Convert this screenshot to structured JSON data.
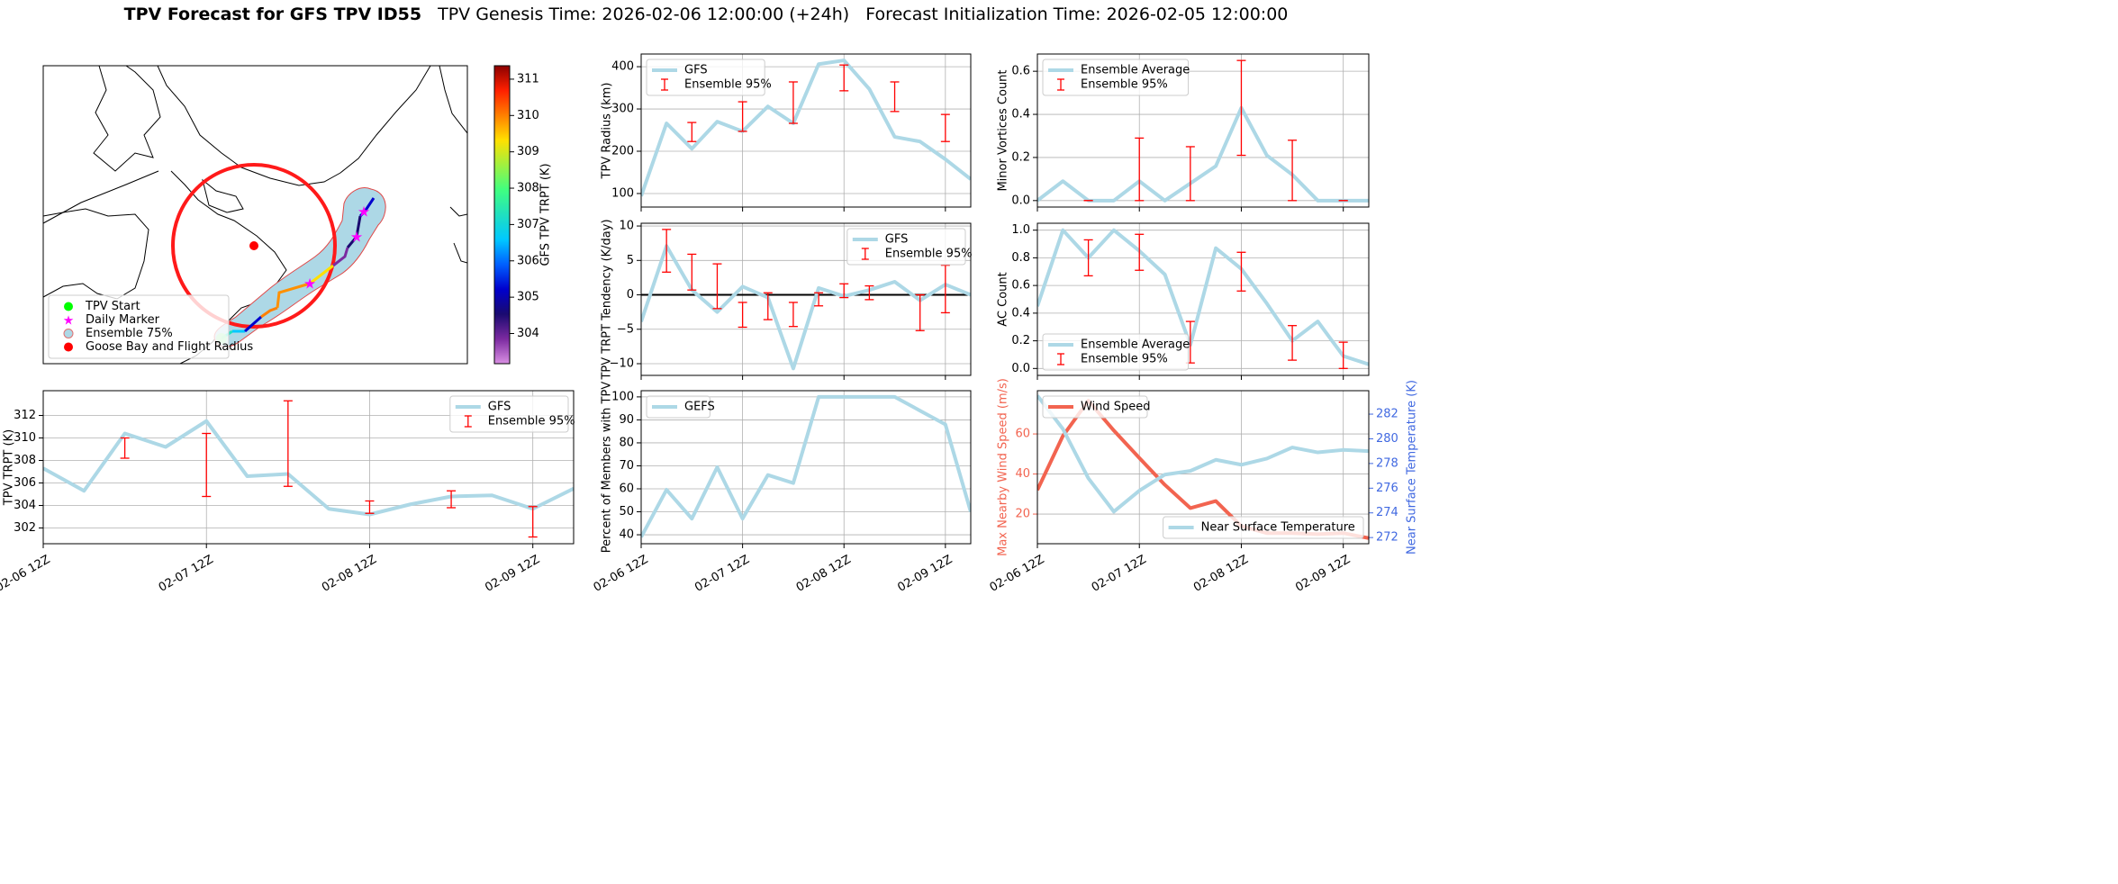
{
  "suptitle": "TPV Forecast for GFS TPV ID55",
  "subtitle": "TPV Genesis Time: 2026-02-06 12:00:00 (+24h)   Forecast Initialization Time: 2026-02-05 12:00:00",
  "chart_data": [
    {
      "type": "map",
      "colorbar": {
        "label": "GFS TPV TRPT (K)",
        "clim": [
          303.17,
          311.37
        ],
        "ticks": [
          304,
          305,
          306,
          307,
          308,
          309,
          310,
          311
        ],
        "colors": [
          "#d98fe3",
          "#7b2aa0",
          "#1a0a70",
          "#0000cd",
          "#0060ff",
          "#00c8ff",
          "#20e0c0",
          "#40ff80",
          "#a0f040",
          "#ffe000",
          "#ff8000",
          "#ff2000",
          "#8b0000"
        ]
      },
      "legend": "lower left",
      "legend_entries": [
        {
          "name": "TPV Start",
          "color": "#00ff00",
          "marker": "circle"
        },
        {
          "name": "Daily Marker",
          "color": "#ff00ff",
          "marker": "star"
        },
        {
          "name": "Ensemble 75%",
          "color": "#add8e6",
          "marker": "circle",
          "edge": "#e07070"
        },
        {
          "name": "Goose Bay and Flight Radius",
          "color": "#ff0000",
          "marker": "circle"
        }
      ]
    },
    {
      "type": "line",
      "ylabel": "TPV TRPT (K)",
      "categories": [
        "02-06 12Z",
        null,
        null,
        null,
        "02-07 12Z",
        null,
        null,
        null,
        "02-08 12Z",
        null,
        null,
        null,
        "02-09 12Z",
        null
      ],
      "ylim": [
        300.6,
        314.2
      ],
      "yticks": [
        302,
        304,
        306,
        308,
        310,
        312
      ],
      "grid": true,
      "legend": "upper right",
      "series": [
        {
          "name": "GFS",
          "color": "#add8e6",
          "values": [
            307.3,
            305.3,
            310.4,
            309.2,
            311.5,
            306.6,
            306.8,
            303.7,
            303.2,
            304.1,
            304.8,
            304.9,
            303.7,
            305.5
          ]
        }
      ],
      "errorbars": {
        "name": "Ensemble 95%",
        "color": "#ff0000",
        "lower": [
          null,
          null,
          308.2,
          null,
          304.8,
          null,
          305.7,
          null,
          303.3,
          null,
          303.8,
          null,
          301.2,
          null
        ],
        "upper": [
          null,
          null,
          310.0,
          null,
          310.4,
          null,
          313.3,
          null,
          304.4,
          null,
          305.3,
          null,
          303.9,
          null
        ]
      }
    },
    {
      "type": "line",
      "ylabel": "TPV Radius (km)",
      "ylim": [
        68,
        430
      ],
      "yticks": [
        100,
        200,
        300,
        400
      ],
      "grid": true,
      "legend": "upper left",
      "series": [
        {
          "name": "GFS",
          "color": "#add8e6",
          "values": [
            94,
            266,
            206,
            270,
            247,
            306,
            266,
            406,
            415,
            347,
            234,
            223,
            181,
            134
          ]
        }
      ],
      "errorbars": {
        "name": "Ensemble 95%",
        "color": "#ff0000",
        "lower": [
          null,
          null,
          223,
          null,
          247,
          null,
          266,
          null,
          343,
          null,
          294,
          null,
          223,
          null
        ],
        "upper": [
          null,
          null,
          268,
          null,
          317,
          null,
          364,
          null,
          404,
          null,
          364,
          null,
          287,
          null
        ]
      }
    },
    {
      "type": "line",
      "ylabel": "TPV TRPT Tendency (K/day)",
      "ylim": [
        -11.7,
        10.4
      ],
      "yticks": [
        {
          "value": -10,
          "label": "−10"
        },
        {
          "value": -5,
          "label": "−5"
        },
        0,
        5,
        10
      ],
      "grid": true,
      "hline": 0,
      "legend": "upper right",
      "series": [
        {
          "name": "GFS",
          "color": "#add8e6",
          "values": [
            -3.9,
            7.1,
            0.7,
            -2.5,
            1.2,
            -0.4,
            -10.7,
            1.0,
            -0.2,
            0.7,
            1.9,
            -0.8,
            1.5,
            0
          ]
        }
      ],
      "errorbars": {
        "name": "Ensemble 95%",
        "color": "#ff0000",
        "lower": [
          null,
          3.3,
          0.7,
          -2.0,
          -4.7,
          -3.6,
          -4.6,
          -1.6,
          -0.4,
          -0.7,
          null,
          -5.2,
          -2.6,
          null
        ],
        "upper": [
          null,
          9.5,
          5.9,
          4.5,
          -1.1,
          0.3,
          -1.1,
          0.3,
          1.6,
          1.3,
          null,
          0,
          4.3,
          null
        ]
      }
    },
    {
      "type": "line",
      "ylabel": "Percent of Members with TPV",
      "categories": [
        "02-06 12Z",
        null,
        null,
        null,
        "02-07 12Z",
        null,
        null,
        null,
        "02-08 12Z",
        null,
        null,
        null,
        "02-09 12Z",
        null
      ],
      "ylim": [
        36.1,
        102.7
      ],
      "yticks": [
        40,
        50,
        60,
        70,
        80,
        90,
        100
      ],
      "grid": true,
      "legend": "upper left",
      "series": [
        {
          "name": "GEFS",
          "color": "#add8e6",
          "values": [
            39,
            59.6,
            47,
            69.4,
            47,
            66,
            62.5,
            100,
            100,
            100,
            100,
            94,
            88,
            50
          ]
        }
      ]
    },
    {
      "type": "line",
      "ylabel": "Minor Vortices Count",
      "ylim": [
        -0.03,
        0.68
      ],
      "yticks": [
        {
          "value": 0,
          "label": "0.0"
        },
        {
          "value": 0.2,
          "label": "0.2"
        },
        {
          "value": 0.4,
          "label": "0.4"
        },
        {
          "value": 0.6,
          "label": "0.6"
        }
      ],
      "grid": true,
      "legend": "upper left",
      "series": [
        {
          "name": "Ensemble Average",
          "color": "#add8e6",
          "values": [
            0,
            0.09,
            0,
            0,
            0.09,
            0,
            0.08,
            0.16,
            0.43,
            0.21,
            0.12,
            0,
            0,
            0
          ]
        }
      ],
      "errorbars": {
        "name": "Ensemble 95%",
        "color": "#ff0000",
        "lower": [
          null,
          null,
          0,
          null,
          0,
          null,
          0,
          null,
          0.21,
          null,
          0,
          null,
          0,
          null
        ],
        "upper": [
          null,
          null,
          0,
          null,
          0.29,
          null,
          0.25,
          null,
          0.65,
          null,
          0.28,
          null,
          0,
          null
        ]
      }
    },
    {
      "type": "line",
      "ylabel": "AC Count",
      "ylim": [
        -0.05,
        1.05
      ],
      "yticks": [
        {
          "value": 0,
          "label": "0.0"
        },
        {
          "value": 0.2,
          "label": "0.2"
        },
        {
          "value": 0.4,
          "label": "0.4"
        },
        {
          "value": 0.6,
          "label": "0.6"
        },
        {
          "value": 0.8,
          "label": "0.8"
        },
        {
          "value": 1,
          "label": "1.0"
        }
      ],
      "grid": true,
      "legend": "lower left",
      "series": [
        {
          "name": "Ensemble Average",
          "color": "#add8e6",
          "values": [
            0.45,
            1.0,
            0.8,
            1.0,
            0.85,
            0.68,
            0.17,
            0.87,
            0.72,
            0.47,
            0.2,
            0.34,
            0.09,
            0.03
          ]
        }
      ],
      "errorbars": {
        "name": "Ensemble 95%",
        "color": "#ff0000",
        "lower": [
          null,
          null,
          0.67,
          null,
          0.71,
          null,
          0.04,
          null,
          0.56,
          null,
          0.06,
          null,
          0,
          null
        ],
        "upper": [
          null,
          null,
          0.93,
          null,
          0.97,
          null,
          0.34,
          null,
          0.84,
          null,
          0.31,
          null,
          0.19,
          null
        ]
      }
    },
    {
      "type": "line",
      "ylabel": "Max Nearby Wind Speed (m/s)",
      "ylabel_color": "#f26450",
      "y2label": "Near Surface Temperature (K)",
      "y2label_color": "#4169e1",
      "categories": [
        "02-06 12Z",
        null,
        null,
        null,
        "02-07 12Z",
        null,
        null,
        null,
        "02-08 12Z",
        null,
        null,
        null,
        "02-09 12Z",
        null
      ],
      "ylim": [
        5.2,
        81.6
      ],
      "yticks": [
        20,
        40,
        60
      ],
      "y2lim": [
        271.5,
        283.9
      ],
      "y2ticks": [
        272,
        274,
        276,
        278,
        280,
        282
      ],
      "grid": true,
      "series": [
        {
          "name": "Wind Speed",
          "color": "#f26450",
          "legend": "upper left",
          "values": [
            32,
            59,
            76.6,
            61.7,
            48,
            34.6,
            23,
            26.5,
            14,
            10.5,
            10.5,
            10,
            10.5,
            8
          ]
        },
        {
          "name": "Near Surface Temperature",
          "color": "#add8e6",
          "axis": "y2",
          "legend": "lower right",
          "values": [
            283.5,
            280.8,
            276.8,
            274.1,
            275.8,
            277.1,
            277.4,
            278.3,
            277.9,
            278.4,
            279.3,
            278.9,
            279.1,
            279.0
          ]
        }
      ]
    }
  ]
}
